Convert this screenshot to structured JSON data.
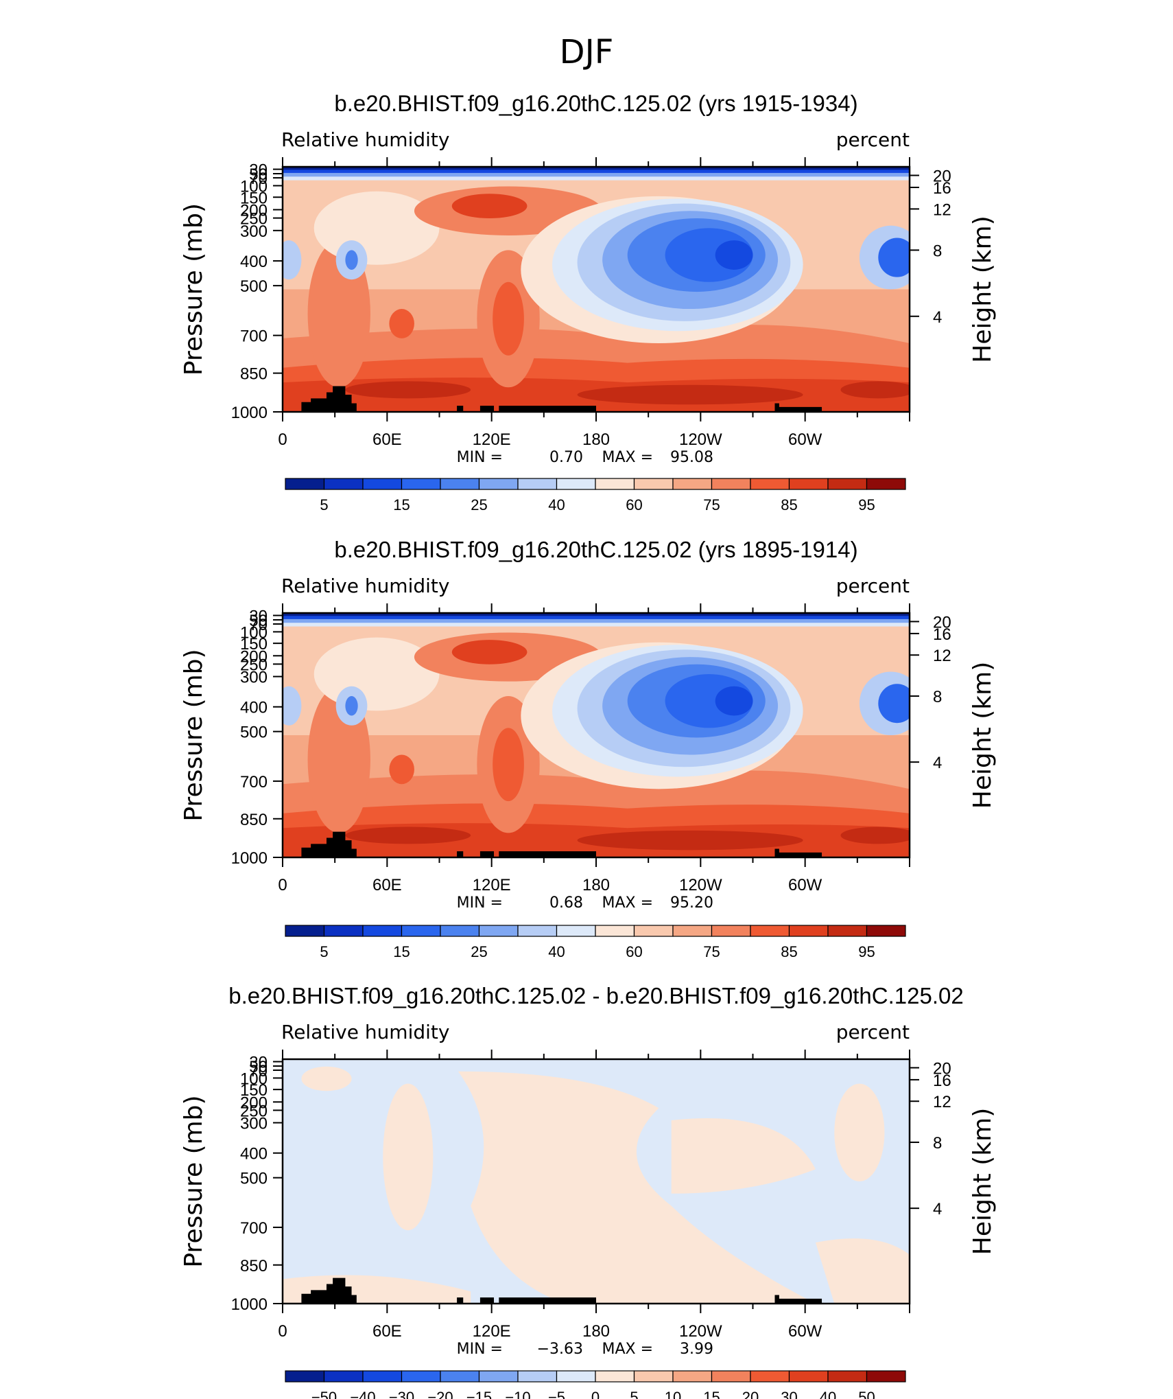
{
  "page_title": "DJF",
  "chart_data": [
    {
      "type": "contour",
      "title": "b.e20.BHIST.f09_g16.20thC.125.02 (yrs 1915-1934)",
      "left_string": "Relative humidity",
      "right_string": "percent",
      "ylabel": "Pressure (mb)",
      "ylabel_right": "Height (km)",
      "x_ticks": [
        "0",
        "60E",
        "120E",
        "180",
        "120W",
        "60W"
      ],
      "y_ticks": [
        "30",
        "50",
        "70",
        "100",
        "150",
        "200",
        "250",
        "300",
        "400",
        "500",
        "700",
        "850",
        "1000"
      ],
      "height_ticks": [
        "20",
        "16",
        "12",
        "8",
        "4"
      ],
      "min_label": "MIN =",
      "min_value": "0.70",
      "max_label": "MAX =",
      "max_value": "95.08",
      "colorbar_labels": [
        "5",
        "15",
        "25",
        "40",
        "60",
        "75",
        "85",
        "95"
      ],
      "colorbar_colors": [
        "#051f8e",
        "#0b31c2",
        "#1449e0",
        "#2a66ee",
        "#4b82ef",
        "#7fa7f2",
        "#b6cdf5",
        "#dde9f9",
        "#fbe6d7",
        "#f9c9ae",
        "#f5a784",
        "#f2825d",
        "#ef5a33",
        "#e0401f",
        "#c42b13",
        "#8e0a08"
      ]
    },
    {
      "type": "contour",
      "title": "b.e20.BHIST.f09_g16.20thC.125.02 (yrs 1895-1914)",
      "left_string": "Relative humidity",
      "right_string": "percent",
      "ylabel": "Pressure (mb)",
      "ylabel_right": "Height (km)",
      "x_ticks": [
        "0",
        "60E",
        "120E",
        "180",
        "120W",
        "60W"
      ],
      "y_ticks": [
        "30",
        "50",
        "70",
        "100",
        "150",
        "200",
        "250",
        "300",
        "400",
        "500",
        "700",
        "850",
        "1000"
      ],
      "height_ticks": [
        "20",
        "16",
        "12",
        "8",
        "4"
      ],
      "min_label": "MIN =",
      "min_value": "0.68",
      "max_label": "MAX =",
      "max_value": "95.20",
      "colorbar_labels": [
        "5",
        "15",
        "25",
        "40",
        "60",
        "75",
        "85",
        "95"
      ],
      "colorbar_colors": [
        "#051f8e",
        "#0b31c2",
        "#1449e0",
        "#2a66ee",
        "#4b82ef",
        "#7fa7f2",
        "#b6cdf5",
        "#dde9f9",
        "#fbe6d7",
        "#f9c9ae",
        "#f5a784",
        "#f2825d",
        "#ef5a33",
        "#e0401f",
        "#c42b13",
        "#8e0a08"
      ]
    },
    {
      "type": "contour",
      "title": "b.e20.BHIST.f09_g16.20thC.125.02 - b.e20.BHIST.f09_g16.20thC.125.02",
      "left_string": "Relative humidity",
      "right_string": "percent",
      "ylabel": "Pressure (mb)",
      "ylabel_right": "Height (km)",
      "x_ticks": [
        "0",
        "60E",
        "120E",
        "180",
        "120W",
        "60W"
      ],
      "y_ticks": [
        "30",
        "50",
        "70",
        "100",
        "150",
        "200",
        "250",
        "300",
        "400",
        "500",
        "700",
        "850",
        "1000"
      ],
      "height_ticks": [
        "20",
        "16",
        "12",
        "8",
        "4"
      ],
      "min_label": "MIN =",
      "min_value": "−3.63",
      "max_label": "MAX =",
      "max_value": "3.99",
      "colorbar_labels": [
        "−50",
        "−40",
        "−30",
        "−20",
        "−15",
        "−10",
        "−5",
        "0",
        "5",
        "10",
        "15",
        "20",
        "30",
        "40",
        "50"
      ],
      "colorbar_colors": [
        "#051f8e",
        "#0b31c2",
        "#1449e0",
        "#2a66ee",
        "#4b82ef",
        "#7fa7f2",
        "#b6cdf5",
        "#dde9f9",
        "#fbe6d7",
        "#f9c9ae",
        "#f5a784",
        "#f2825d",
        "#ef5a33",
        "#e0401f",
        "#c42b13",
        "#8e0a08"
      ]
    }
  ]
}
